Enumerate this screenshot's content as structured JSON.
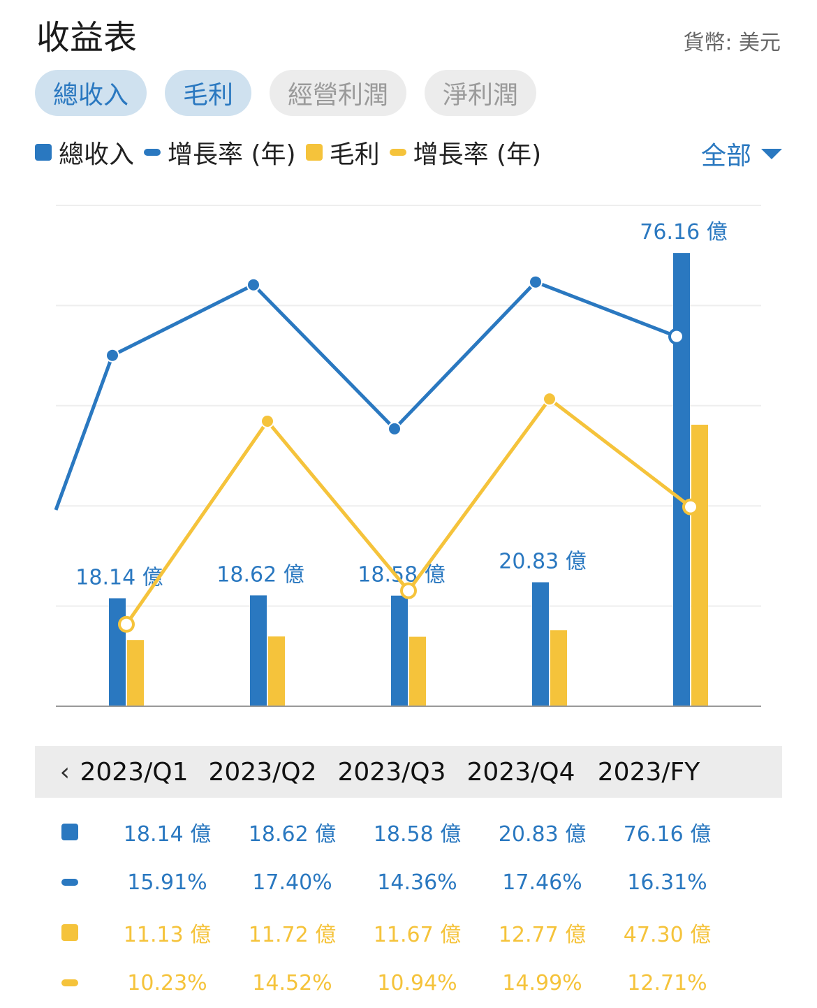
{
  "header": {
    "title": "收益表",
    "currency": "貨幣: 美元"
  },
  "tabs": [
    {
      "label": "總收入",
      "active": true
    },
    {
      "label": "毛利",
      "active": true
    },
    {
      "label": "經營利潤",
      "active": false
    },
    {
      "label": "淨利潤",
      "active": false
    }
  ],
  "legend": [
    {
      "label": "總收入",
      "shape": "box",
      "color": "#2a78c0"
    },
    {
      "label": "增長率 (年)",
      "shape": "line",
      "color": "#2a78c0"
    },
    {
      "label": "毛利",
      "shape": "box",
      "color": "#f5c33b"
    },
    {
      "label": "增長率 (年)",
      "shape": "line",
      "color": "#f5c33b"
    }
  ],
  "filter": {
    "label": "全部"
  },
  "colors": {
    "blue": "#2a78c0",
    "yellow": "#f5c33b",
    "grid": "#eeeeee",
    "axis": "#999999"
  },
  "nav": {
    "prev": "‹"
  },
  "chart_data": {
    "type": "bar",
    "categories": [
      "2023/Q1",
      "2023/Q2",
      "2023/Q3",
      "2023/Q4",
      "2023/FY"
    ],
    "series": [
      {
        "name": "總收入",
        "type": "bar",
        "color": "#2a78c0",
        "values": [
          18.14,
          18.62,
          18.58,
          20.83,
          76.16
        ],
        "unit": "億",
        "labels": [
          "18.14 億",
          "18.62 億",
          "18.58 億",
          "20.83 億",
          "76.16 億"
        ]
      },
      {
        "name": "毛利",
        "type": "bar",
        "color": "#f5c33b",
        "values": [
          11.13,
          11.72,
          11.67,
          12.77,
          47.3
        ],
        "unit": "億"
      },
      {
        "name": "增長率 (年)",
        "type": "line",
        "color": "#2a78c0",
        "values": [
          15.91,
          17.4,
          14.36,
          17.46,
          16.31
        ],
        "unit": "%"
      },
      {
        "name": "增長率 (年)",
        "type": "line",
        "color": "#f5c33b",
        "values": [
          10.23,
          14.52,
          10.94,
          14.99,
          12.71
        ],
        "unit": "%"
      }
    ],
    "grid": true,
    "legend_position": "top-left"
  },
  "table": {
    "rows": [
      {
        "marker": "box",
        "color": "blue",
        "cells": [
          "18.14 億",
          "18.62 億",
          "18.58 億",
          "20.83 億",
          "76.16 億"
        ]
      },
      {
        "marker": "line",
        "color": "blue",
        "cells": [
          "15.91%",
          "17.40%",
          "14.36%",
          "17.46%",
          "16.31%"
        ]
      },
      {
        "marker": "box",
        "color": "yellow",
        "cells": [
          "11.13 億",
          "11.72 億",
          "11.67 億",
          "12.77 億",
          "47.30 億"
        ]
      },
      {
        "marker": "line",
        "color": "yellow",
        "cells": [
          "10.23%",
          "14.52%",
          "10.94%",
          "14.99%",
          "12.71%"
        ]
      }
    ]
  }
}
